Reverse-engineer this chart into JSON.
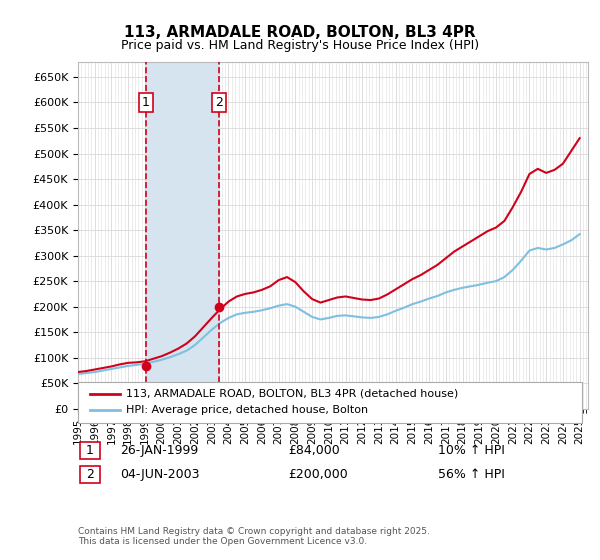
{
  "title": "113, ARMADALE ROAD, BOLTON, BL3 4PR",
  "subtitle": "Price paid vs. HM Land Registry's House Price Index (HPI)",
  "legend_line1": "113, ARMADALE ROAD, BOLTON, BL3 4PR (detached house)",
  "legend_line2": "HPI: Average price, detached house, Bolton",
  "transaction1_label": "1",
  "transaction1_date": "26-JAN-1999",
  "transaction1_price": "£84,000",
  "transaction1_hpi": "10% ↑ HPI",
  "transaction2_label": "2",
  "transaction2_date": "04-JUN-2003",
  "transaction2_price": "£200,000",
  "transaction2_hpi": "56% ↑ HPI",
  "footnote": "Contains HM Land Registry data © Crown copyright and database right 2025.\nThis data is licensed under the Open Government Licence v3.0.",
  "line_color_red": "#d0021b",
  "line_color_blue": "#7fbfdf",
  "highlight_fill": "#d6e4f0",
  "highlight_border": "#d0021b",
  "background_color": "#ffffff",
  "grid_color": "#dddddd",
  "ylim": [
    0,
    680000
  ],
  "yticks": [
    0,
    50000,
    100000,
    150000,
    200000,
    250000,
    300000,
    350000,
    400000,
    450000,
    500000,
    550000,
    600000,
    650000
  ],
  "xstart": 1995.0,
  "xend": 2025.5,
  "transaction1_x": 1999.07,
  "transaction2_x": 2003.42
}
